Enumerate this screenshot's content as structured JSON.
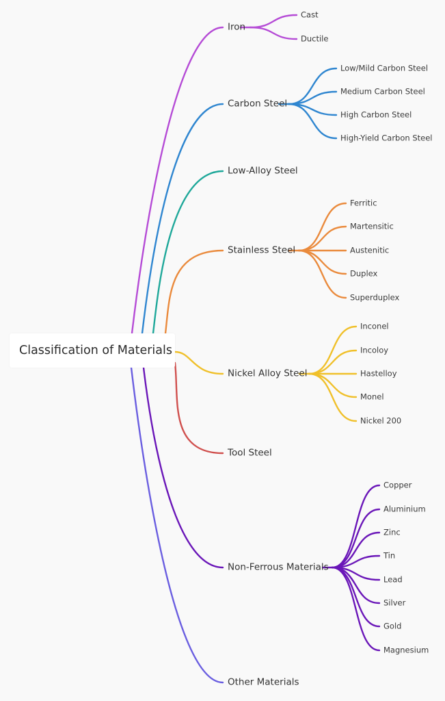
{
  "root": {
    "label": "Classification of Materials"
  },
  "branches": [
    {
      "label": "Iron",
      "color": "#b54bd6",
      "children": [
        "Cast",
        "Ductile"
      ]
    },
    {
      "label": "Carbon Steel",
      "color": "#2f86d0",
      "children": [
        "Low/Mild Carbon Steel",
        "Medium Carbon Steel",
        "High Carbon Steel",
        "High-Yield Carbon Steel"
      ]
    },
    {
      "label": "Low-Alloy Steel",
      "color": "#1fa89a",
      "children": []
    },
    {
      "label": "Stainless Steel",
      "color": "#ea8a3c",
      "children": [
        "Ferritic",
        "Martensitic",
        "Austenitic",
        "Duplex",
        "Superduplex"
      ]
    },
    {
      "label": "Nickel Alloy Steel",
      "color": "#f0c02a",
      "children": [
        "Inconel",
        "Incoloy",
        "Hastelloy",
        "Monel",
        "Nickel 200"
      ]
    },
    {
      "label": "Tool Steel",
      "color": "#d0504e",
      "children": []
    },
    {
      "label": "Non-Ferrous Materials",
      "color": "#6a16b8",
      "children": [
        "Copper",
        "Aluminium",
        "Zinc",
        "Tin",
        "Lead",
        "Silver",
        "Gold",
        "Magnesium"
      ]
    },
    {
      "label": "Other Materials",
      "color": "#6a5ee0",
      "children": []
    }
  ]
}
